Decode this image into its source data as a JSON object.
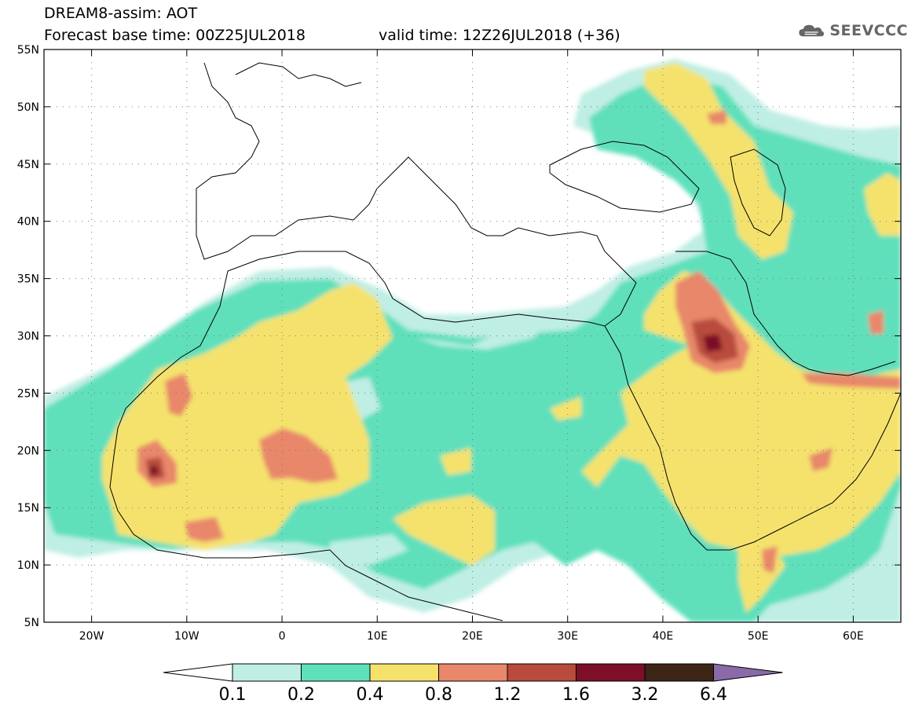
{
  "header": {
    "title": "DREAM8-assim: AOT",
    "base_time": "Forecast base time: 00Z25JUL2018",
    "valid_time": "valid time: 12Z26JUL2018 (+36)"
  },
  "logo": {
    "text": "SEEVCCC",
    "icon": "cloud-icon"
  },
  "map": {
    "lon_range": [
      -25,
      65
    ],
    "lat_range": [
      5,
      55
    ],
    "lon_ticks": [
      {
        "value": -20,
        "label": "20W"
      },
      {
        "value": -10,
        "label": "10W"
      },
      {
        "value": 0,
        "label": "0"
      },
      {
        "value": 10,
        "label": "10E"
      },
      {
        "value": 20,
        "label": "20E"
      },
      {
        "value": 30,
        "label": "30E"
      },
      {
        "value": 40,
        "label": "40E"
      },
      {
        "value": 50,
        "label": "50E"
      },
      {
        "value": 60,
        "label": "60E"
      }
    ],
    "lat_ticks": [
      {
        "value": 5,
        "label": "5N"
      },
      {
        "value": 10,
        "label": "10N"
      },
      {
        "value": 15,
        "label": "15N"
      },
      {
        "value": 20,
        "label": "20N"
      },
      {
        "value": 25,
        "label": "25N"
      },
      {
        "value": 30,
        "label": "30N"
      },
      {
        "value": 35,
        "label": "35N"
      },
      {
        "value": 40,
        "label": "40N"
      },
      {
        "value": 45,
        "label": "45N"
      },
      {
        "value": 50,
        "label": "50N"
      },
      {
        "value": 55,
        "label": "55N"
      }
    ],
    "grid": true
  },
  "colorbar": {
    "labels": [
      "0.1",
      "0.2",
      "0.4",
      "0.8",
      "1.2",
      "1.6",
      "3.2",
      "6.4"
    ],
    "colors": [
      "#ffffff",
      "#bfeee4",
      "#5fe0bb",
      "#f5e26d",
      "#e8876a",
      "#b84b3e",
      "#7d0f28",
      "#3c2515",
      "#8a6aa8"
    ]
  }
}
